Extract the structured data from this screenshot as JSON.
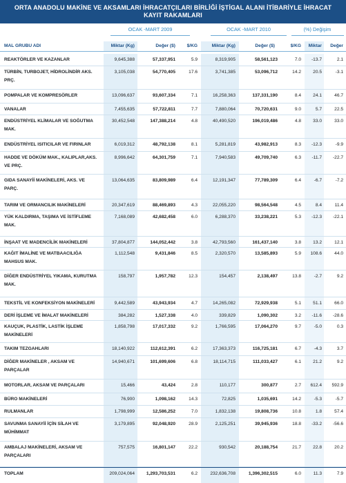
{
  "title": {
    "line1": "ORTA ANADOLU MAKİNE VE AKSAMLARI İHRACATÇILARI BİRLİĞİ İŞTİGAL ALANI İTİBARİYLE İHRACAT",
    "line2": "KAYIT RAKAMLARI"
  },
  "groups": {
    "p2009": "OCAK -MART 2009",
    "p2010": "OCAK -MART 2010",
    "change": "(%) Değişim"
  },
  "columns": {
    "name": "MAL GRUBU ADI",
    "qty2009": "Miktar (Kg)",
    "val2009": "Değer ($)",
    "unit2009": "$/KG",
    "qty2010": "Miktar (Kg)",
    "val2010": "Değer ($)",
    "unit2010": "$/KG",
    "chgQty": "Miktar",
    "chgVal": "Değer"
  },
  "rows": [
    {
      "name": "REAKTÖRLER VE KAZANLAR",
      "q09": "9,645,388",
      "v09": "57,337,951",
      "u09": "5.9",
      "q10": "8,319,905",
      "v10": "58,561,123",
      "u10": "7.0",
      "cq": "-13.7",
      "cv": "2.1"
    },
    {
      "name": "TÜRBİN, TURBOJET, HİDROLİNDİR AKS. PRÇ.",
      "q09": "3,105,038",
      "v09": "54,770,405",
      "u09": "17.6",
      "q10": "3,741,385",
      "v10": "53,096,712",
      "u10": "14.2",
      "cq": "20.5",
      "cv": "-3.1"
    },
    {
      "name": "POMPALAR VE KOMPRESÖRLER",
      "q09": "13,096,637",
      "v09": "93,607,334",
      "u09": "7.1",
      "q10": "16,258,363",
      "v10": "137,331,190",
      "u10": "8.4",
      "cq": "24.1",
      "cv": "46.7"
    },
    {
      "name": "VANALAR",
      "q09": "7,455,635",
      "v09": "57,722,811",
      "u09": "7.7",
      "q10": "7,880,064",
      "v10": "70,720,631",
      "u10": "9.0",
      "cq": "5.7",
      "cv": "22.5"
    },
    {
      "name": "ENDÜSTRİYEL KLİMALAR VE SOĞUTMA MAK.",
      "q09": "30,452,548",
      "v09": "147,388,214",
      "u09": "4.8",
      "q10": "40,490,520",
      "v10": "196,019,486",
      "u10": "4.8",
      "cq": "33.0",
      "cv": "33.0"
    },
    {
      "name": "ENDÜSTRİYEL ISITICILAR VE FIRINLAR",
      "q09": "6,019,312",
      "v09": "48,792,138",
      "u09": "8.1",
      "q10": "5,281,819",
      "v10": "43,982,913",
      "u10": "8.3",
      "cq": "-12.3",
      "cv": "-9.9"
    },
    {
      "name": "HADDE VE DÖKÜM MAK., KALIPLAR,AKS. VE PRÇ.",
      "q09": "8,996,642",
      "v09": "64,301,759",
      "u09": "7.1",
      "q10": "7,940,583",
      "v10": "49,709,740",
      "u10": "6.3",
      "cq": "-11.7",
      "cv": "-22.7"
    },
    {
      "name": "GIDA SANAYİİ MAKİNELERİ, AKS. VE PARÇ.",
      "q09": "13,064,635",
      "v09": "83,809,989",
      "u09": "6.4",
      "q10": "12,191,347",
      "v10": "77,789,309",
      "u10": "6.4",
      "cq": "-6.7",
      "cv": "-7.2"
    },
    {
      "name": "TARIM VE ORMANCILIK MAKİNELERİ",
      "q09": "20,347,619",
      "v09": "88,469,893",
      "u09": "4.3",
      "q10": "22,055,220",
      "v10": "98,564,548",
      "u10": "4.5",
      "cq": "8.4",
      "cv": "11.4"
    },
    {
      "name": "YÜK KALDIRMA, TAŞIMA VE İSTİFLEME MAK.",
      "q09": "7,168,089",
      "v09": "42,682,458",
      "u09": "6.0",
      "q10": "6,288,370",
      "v10": "33,238,221",
      "u10": "5.3",
      "cq": "-12.3",
      "cv": "-22.1"
    },
    {
      "name": "İNŞAAT VE MADENCİLİK MAKİNELERİ",
      "q09": "37,804,877",
      "v09": "144,052,442",
      "u09": "3.8",
      "q10": "42,793,560",
      "v10": "161,437,140",
      "u10": "3.8",
      "cq": "13.2",
      "cv": "12.1"
    },
    {
      "name": "KAĞIT İMALİNE VE MATBAACILIĞA MAHSUS MAK.",
      "q09": "1,112,548",
      "v09": "9,431,846",
      "u09": "8.5",
      "q10": "2,320,570",
      "v10": "13,585,893",
      "u10": "5.9",
      "cq": "108.6",
      "cv": "44.0"
    },
    {
      "name": "DİĞER ENDÜSTRİYEL YIKAMA, KURUTMA MAK.",
      "q09": "158,797",
      "v09": "1,957,782",
      "u09": "12.3",
      "q10": "154,457",
      "v10": "2,138,497",
      "u10": "13.8",
      "cq": "-2.7",
      "cv": "9.2"
    },
    {
      "name": "TEKSTİL VE KONFEKSİYON MAKİNELERİ",
      "q09": "9,442,589",
      "v09": "43,943,934",
      "u09": "4.7",
      "q10": "14,265,082",
      "v10": "72,929,938",
      "u10": "5.1",
      "cq": "51.1",
      "cv": "66.0"
    },
    {
      "name": "DERİ İŞLEME VE İMALAT MAKİNELERİ",
      "q09": "384,282",
      "v09": "1,527,338",
      "u09": "4.0",
      "q10": "339,829",
      "v10": "1,090,302",
      "u10": "3.2",
      "cq": "-11.6",
      "cv": "-28.6"
    },
    {
      "name": "KAUÇUK, PLASTİK, LASTİK İŞLEME MAKİNELERİ",
      "q09": "1,858,798",
      "v09": "17,017,332",
      "u09": "9.2",
      "q10": "1,766,595",
      "v10": "17,064,270",
      "u10": "9.7",
      "cq": "-5.0",
      "cv": "0.3"
    },
    {
      "name": "TAKIM TEZGAHLARI",
      "q09": "18,140,922",
      "v09": "112,612,391",
      "u09": "6.2",
      "q10": "17,363,373",
      "v10": "116,725,181",
      "u10": "6.7",
      "cq": "-4.3",
      "cv": "3.7"
    },
    {
      "name": "DİĞER MAKİNELER , AKSAM VE PARÇALAR",
      "q09": "14,940,671",
      "v09": "101,699,606",
      "u09": "6.8",
      "q10": "18,114,715",
      "v10": "111,033,427",
      "u10": "6.1",
      "cq": "21.2",
      "cv": "9.2"
    },
    {
      "name": "MOTORLAR, AKSAM VE PARÇALARI",
      "q09": "15,466",
      "v09": "43,424",
      "u09": "2.8",
      "q10": "110,177",
      "v10": "300,877",
      "u10": "2.7",
      "cq": "612.4",
      "cv": "592.9"
    },
    {
      "name": "BÜRO MAKİNELERİ",
      "q09": "76,900",
      "v09": "1,098,162",
      "u09": "14.3",
      "q10": "72,825",
      "v10": "1,035,691",
      "u10": "14.2",
      "cq": "-5.3",
      "cv": "-5.7"
    },
    {
      "name": "RULMANLAR",
      "q09": "1,798,999",
      "v09": "12,586,252",
      "u09": "7.0",
      "q10": "1,832,138",
      "v10": "19,808,736",
      "u10": "10.8",
      "cq": "1.8",
      "cv": "57.4"
    },
    {
      "name": "SAVUNMA SANAYİİ İÇİN SİLAH VE MÜHİMMAT",
      "q09": "3,179,895",
      "v09": "92,048,920",
      "u09": "28.9",
      "q10": "2,125,251",
      "v10": "39,945,936",
      "u10": "18.8",
      "cq": "-33.2",
      "cv": "-56.6"
    },
    {
      "name": "AMBALAJ MAKİNELERİ, AKSAM VE PARÇALARI",
      "q09": "757,575",
      "v09": "16,801,147",
      "u09": "22.2",
      "q10": "930,542",
      "v10": "20,188,754",
      "u10": "21.7",
      "cq": "22.8",
      "cv": "20.2"
    },
    {
      "name": "TOPLAM",
      "q09": "209,024,064",
      "v09": "1,293,703,531",
      "u09": "6.2",
      "q10": "232,636,708",
      "v10": "1,396,302,515",
      "u10": "6.0",
      "cq": "11.3",
      "cv": "7.9"
    }
  ],
  "colors": {
    "header_bg": "#1c4f86",
    "accent": "#2b86c4",
    "shade": "#e2eff8"
  }
}
